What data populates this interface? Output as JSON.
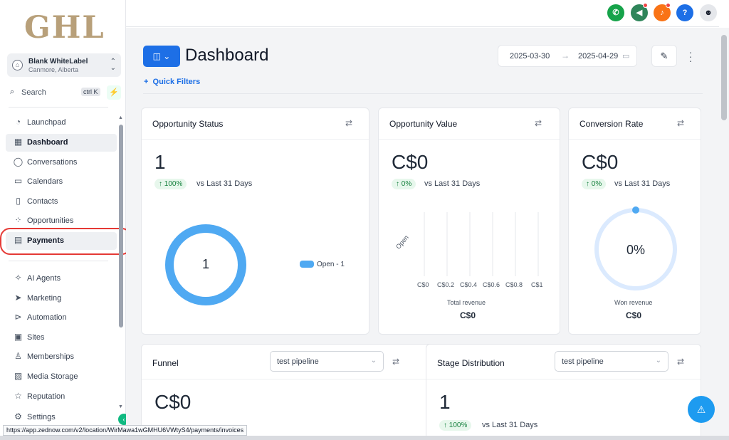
{
  "brand": {
    "logo_text": "GHL"
  },
  "account": {
    "name": "Blank WhiteLabel",
    "location": "Canmore, Alberta"
  },
  "search": {
    "label": "Search",
    "shortcut": "ctrl K"
  },
  "sidebar": {
    "items": [
      {
        "label": "Launchpad"
      },
      {
        "label": "Dashboard"
      },
      {
        "label": "Conversations"
      },
      {
        "label": "Calendars"
      },
      {
        "label": "Contacts"
      },
      {
        "label": "Opportunities"
      },
      {
        "label": "Payments"
      },
      {
        "label": "AI Agents"
      },
      {
        "label": "Marketing"
      },
      {
        "label": "Automation"
      },
      {
        "label": "Sites"
      },
      {
        "label": "Memberships"
      },
      {
        "label": "Media Storage"
      },
      {
        "label": "Reputation"
      },
      {
        "label": "Settings"
      }
    ]
  },
  "topbar": {
    "help_label": "?"
  },
  "header": {
    "title": "Dashboard",
    "date_start": "2025-03-30",
    "date_end": "2025-04-29",
    "quick_filters": "Quick Filters"
  },
  "cards": {
    "opportunity_status": {
      "title": "Opportunity Status",
      "value": "1",
      "change": "↑ 100%",
      "comparison": "vs Last 31 Days",
      "donut_value": "1",
      "legend": "Open - 1"
    },
    "opportunity_value": {
      "title": "Opportunity Value",
      "value": "C$0",
      "change": "↑ 0%",
      "comparison": "vs Last 31 Days",
      "category": "Open",
      "ticks": [
        "C$0",
        "C$0.2",
        "C$0.4",
        "C$0.6",
        "C$0.8",
        "C$1"
      ],
      "footer_label": "Total revenue",
      "footer_value": "C$0"
    },
    "conversion_rate": {
      "title": "Conversion Rate",
      "value": "C$0",
      "change": "↑ 0%",
      "comparison": "vs Last 31 Days",
      "gauge_value": "0%",
      "footer_label": "Won revenue",
      "footer_value": "C$0"
    },
    "funnel": {
      "title": "Funnel",
      "pipeline": "test pipeline",
      "value": "C$0"
    },
    "stage_distribution": {
      "title": "Stage Distribution",
      "pipeline": "test pipeline",
      "value": "1",
      "change": "↑ 100%",
      "comparison": "vs Last 31 Days"
    }
  },
  "status_url": "https://app.zednow.com/v2/location/WirMawa1wGMHU6VWtyS4/payments/invoices",
  "chart_data": [
    {
      "type": "pie",
      "title": "Opportunity Status",
      "categories": [
        "Open"
      ],
      "values": [
        1
      ]
    },
    {
      "type": "bar",
      "title": "Opportunity Value",
      "categories": [
        "Open"
      ],
      "values": [
        0
      ],
      "xlabel": "Total revenue",
      "xlim": [
        0,
        1
      ],
      "x_ticks": [
        "C$0",
        "C$0.2",
        "C$0.4",
        "C$0.6",
        "C$0.8",
        "C$1"
      ]
    }
  ],
  "colors": {
    "primary": "#1d6fe6",
    "donut": "#4fa9f2",
    "gauge_track": "#dbeafe",
    "positive": "#15803d",
    "highlight": "#e53935",
    "phone": "#16a34a",
    "megaphone": "#2f855a",
    "bell": "#f97316",
    "help": "#1d6fe6"
  }
}
